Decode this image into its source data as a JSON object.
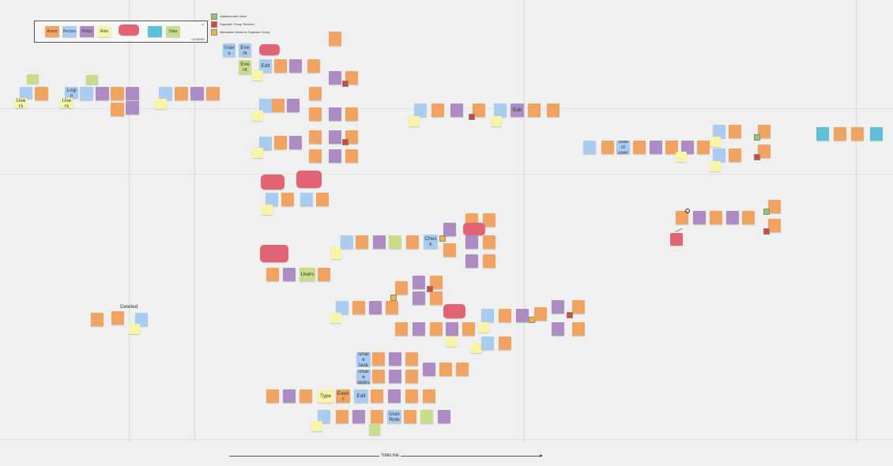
{
  "legend": {
    "title": "LEGEND",
    "plus": "+",
    "items": [
      {
        "label": "Event",
        "color": "orange"
      },
      {
        "label": "Person",
        "color": "blue"
      },
      {
        "label": "Policy",
        "color": "purple"
      },
      {
        "label": "Role",
        "color": "yellow"
      },
      {
        "label": "",
        "color": "red"
      },
      {
        "label": "",
        "color": "teal"
      },
      {
        "label": "Data",
        "color": "green"
      }
    ]
  },
  "status_key": [
    {
      "label": "Validated with Users",
      "color": "green"
    },
    {
      "label": "Organizer Group Touched",
      "color": "red"
    },
    {
      "label": "Alternative Needs to Organizer Group",
      "color": "orange"
    }
  ],
  "deleted_label": "Deleted",
  "timeline_label": "TIMELINE",
  "notes": {
    "n_users_a": "Users",
    "n_login": "Login",
    "n_users_b": "Users",
    "n_users_c": "Users",
    "n_event": "Event",
    "n_user_events": "User Events",
    "n_events_list": "Events List",
    "n_edit": "Edit",
    "n_select_user": "Select user",
    "n_select_task": "Select task",
    "n_share_task": "Share task",
    "n_share_tasks": "Share tasks",
    "n_users_d": "Users",
    "n_users_e": "Users",
    "n_users_f": "Users",
    "n_users_g": "Users",
    "n_users_h": "Users",
    "n_event_b": "Event",
    "n_check": "Check",
    "n_type": "Type",
    "n_edit_b": "Edit",
    "n_user_role": "User Role",
    "n_users_i": "Users",
    "n_event_c": "Event",
    "n_event_d": "Event"
  }
}
